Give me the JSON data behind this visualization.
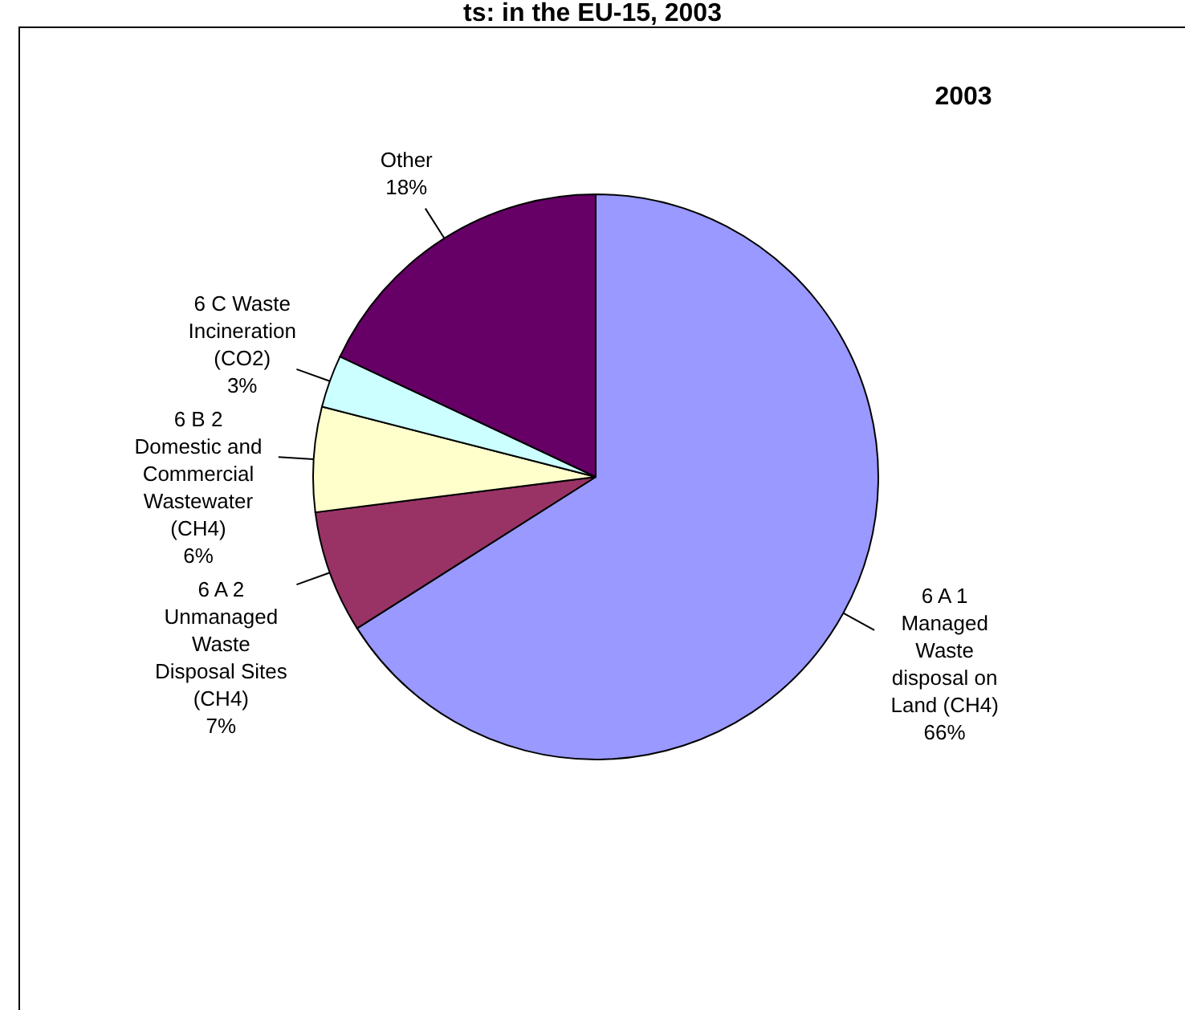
{
  "chart_data": {
    "type": "pie",
    "title": "ts: in the EU-15, 2003",
    "annotations": [
      "2003"
    ],
    "categories": [
      "6 A 1\nManaged\nWaste\ndisposal on\nLand (CH4)",
      "6 A 2\nUnmanaged\nWaste\nDisposal Sites\n(CH4)",
      "6 B 2\nDomestic and\nCommercial\nWastewater\n(CH4)",
      "6 C Waste\nIncineration\n(CO2)",
      "Other"
    ],
    "values": [
      66,
      7,
      6,
      3,
      18
    ],
    "value_labels": [
      "66%",
      "7%",
      "6%",
      "3%",
      "18%"
    ],
    "colors": [
      "#9999ff",
      "#993366",
      "#ffffcc",
      "#ccffff",
      "#660066"
    ]
  }
}
